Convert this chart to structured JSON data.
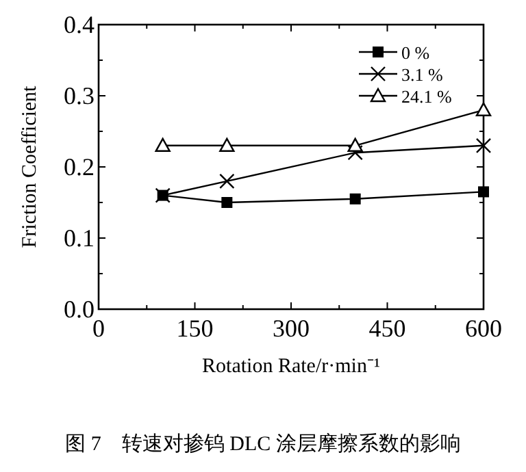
{
  "chart_data": {
    "type": "line",
    "xlabel": "Rotation Rate/r·min⁻¹",
    "ylabel": "Friction Coefficient",
    "x": [
      100,
      200,
      400,
      600
    ],
    "series": [
      {
        "name": "0 %",
        "color": "#000000",
        "marker": "square",
        "values": [
          0.16,
          0.15,
          0.155,
          0.165
        ]
      },
      {
        "name": "3.1 %",
        "color": "#000000",
        "marker": "cross",
        "values": [
          0.16,
          0.18,
          0.22,
          0.23
        ]
      },
      {
        "name": "24.1 %",
        "color": "#000000",
        "marker": "triangle",
        "values": [
          0.23,
          0.23,
          0.23,
          0.28
        ]
      }
    ],
    "xlim": [
      0,
      600
    ],
    "xticks": [
      0,
      {
        "value": 75,
        "label": null
      },
      150,
      {
        "value": 225,
        "label": null
      },
      300,
      {
        "value": 375,
        "label": null
      },
      450,
      {
        "value": 525,
        "label": null
      },
      600
    ],
    "ylim": [
      0,
      0.4
    ],
    "yticks": [
      "0.0",
      {
        "value": 0.05,
        "label": null
      },
      0.1,
      {
        "value": 0.15,
        "label": null
      },
      0.2,
      {
        "value": 0.25,
        "label": null
      },
      0.3,
      {
        "value": 0.35,
        "label": null
      },
      0.4
    ],
    "line_style": "solid",
    "grid": false,
    "legend": "top right",
    "annotations": [
      "图 7　转速对掺钨 DLC 涂层摩擦系数的影响"
    ]
  }
}
